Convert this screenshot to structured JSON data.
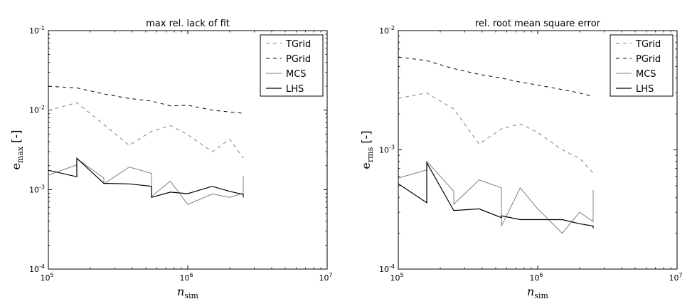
{
  "chart_data": [
    {
      "type": "line",
      "title": "max rel. lack of fit",
      "xlabel": "n_sim",
      "ylabel": "e_max [-]",
      "xscale": "log",
      "yscale": "log",
      "xlim": [
        100000,
        10000000
      ],
      "ylim": [
        0.0001,
        0.1
      ],
      "xticks": [
        {
          "v": 100000,
          "base": "10",
          "exp": "5"
        },
        {
          "v": 1000000,
          "base": "10",
          "exp": "6"
        },
        {
          "v": 10000000,
          "base": "10",
          "exp": "7"
        }
      ],
      "yticks": [
        {
          "v": 0.0001,
          "base": "10",
          "exp": "-4"
        },
        {
          "v": 0.001,
          "base": "10",
          "exp": "-3"
        },
        {
          "v": 0.01,
          "base": "10",
          "exp": "-2"
        },
        {
          "v": 0.1,
          "base": "10",
          "exp": "-1"
        }
      ],
      "legend_position": "top-right",
      "series": [
        {
          "name": "TGrid",
          "style": "dashed-gray",
          "color": "#808080",
          "x": [
            100000,
            160000,
            250000,
            380000,
            550000,
            750000,
            1000000,
            1500000,
            2000000,
            2500000
          ],
          "y": [
            0.0099,
            0.0124,
            0.0066,
            0.0036,
            0.0054,
            0.0064,
            0.0049,
            0.003,
            0.0043,
            0.0025
          ]
        },
        {
          "name": "PGrid",
          "style": "dashed-black",
          "color": "#000000",
          "x": [
            100000,
            160000,
            250000,
            380000,
            550000,
            750000,
            1000000,
            1500000,
            2000000,
            2500000
          ],
          "y": [
            0.02,
            0.019,
            0.016,
            0.014,
            0.013,
            0.0113,
            0.0115,
            0.01,
            0.0095,
            0.0091
          ]
        },
        {
          "name": "MCS",
          "style": "solid-gray",
          "color": "#808080",
          "x": [
            100000,
            160000,
            160000,
            250000,
            250000,
            380000,
            550000,
            550000,
            750000,
            1000000,
            1500000,
            2000000,
            2500000,
            2500000
          ],
          "y": [
            0.00152,
            0.00205,
            0.00245,
            0.0014,
            0.00118,
            0.00192,
            0.0016,
            0.00082,
            0.00128,
            0.00065,
            0.00088,
            0.0008,
            0.0009,
            0.00148
          ]
        },
        {
          "name": "LHS",
          "style": "solid-black",
          "color": "#000000",
          "x": [
            100000,
            160000,
            160000,
            250000,
            380000,
            550000,
            550000,
            750000,
            1000000,
            1500000,
            2000000,
            2500000,
            2500000
          ],
          "y": [
            0.00175,
            0.00145,
            0.00248,
            0.0012,
            0.00118,
            0.0011,
            0.0008,
            0.00093,
            0.00089,
            0.0011,
            0.00095,
            0.00087,
            0.0008
          ]
        }
      ]
    },
    {
      "type": "line",
      "title": "rel. root mean square error",
      "xlabel": "n_sim",
      "ylabel": "e_rms [-]",
      "xscale": "log",
      "yscale": "log",
      "xlim": [
        100000,
        10000000
      ],
      "ylim": [
        0.0001,
        0.01
      ],
      "xticks": [
        {
          "v": 100000,
          "base": "10",
          "exp": "5"
        },
        {
          "v": 1000000,
          "base": "10",
          "exp": "6"
        },
        {
          "v": 10000000,
          "base": "10",
          "exp": "7"
        }
      ],
      "yticks": [
        {
          "v": 0.0001,
          "base": "10",
          "exp": "-4"
        },
        {
          "v": 0.001,
          "base": "10",
          "exp": "-3"
        },
        {
          "v": 0.01,
          "base": "10",
          "exp": "-2"
        }
      ],
      "legend_position": "top-right",
      "series": [
        {
          "name": "TGrid",
          "style": "dashed-gray",
          "color": "#808080",
          "x": [
            100000,
            160000,
            250000,
            380000,
            550000,
            750000,
            1000000,
            1500000,
            2000000,
            2500000
          ],
          "y": [
            0.0027,
            0.003,
            0.0022,
            0.00112,
            0.0015,
            0.00165,
            0.0014,
            0.001,
            0.00085,
            0.00064
          ]
        },
        {
          "name": "PGrid",
          "style": "dashed-black",
          "color": "#000000",
          "x": [
            100000,
            160000,
            250000,
            380000,
            550000,
            750000,
            1000000,
            1500000,
            2000000,
            2500000
          ],
          "y": [
            0.006,
            0.0056,
            0.0048,
            0.0043,
            0.004,
            0.0037,
            0.0035,
            0.0032,
            0.003,
            0.0028
          ]
        },
        {
          "name": "MCS",
          "style": "solid-gray",
          "color": "#808080",
          "x": [
            100000,
            160000,
            160000,
            250000,
            250000,
            380000,
            550000,
            550000,
            750000,
            1000000,
            1500000,
            2000000,
            2500000,
            2500000
          ],
          "y": [
            0.00058,
            0.00068,
            0.0008,
            0.00045,
            0.00035,
            0.00056,
            0.00048,
            0.00023,
            0.00048,
            0.00032,
            0.0002,
            0.0003,
            0.00025,
            0.00046
          ]
        },
        {
          "name": "LHS",
          "style": "solid-black",
          "color": "#000000",
          "x": [
            100000,
            160000,
            160000,
            250000,
            380000,
            550000,
            550000,
            750000,
            1000000,
            1500000,
            2000000,
            2500000,
            2500000
          ],
          "y": [
            0.00052,
            0.00036,
            0.00078,
            0.00031,
            0.00032,
            0.00027,
            0.00028,
            0.00026,
            0.00026,
            0.00026,
            0.00024,
            0.00023,
            0.00022
          ]
        }
      ]
    }
  ]
}
